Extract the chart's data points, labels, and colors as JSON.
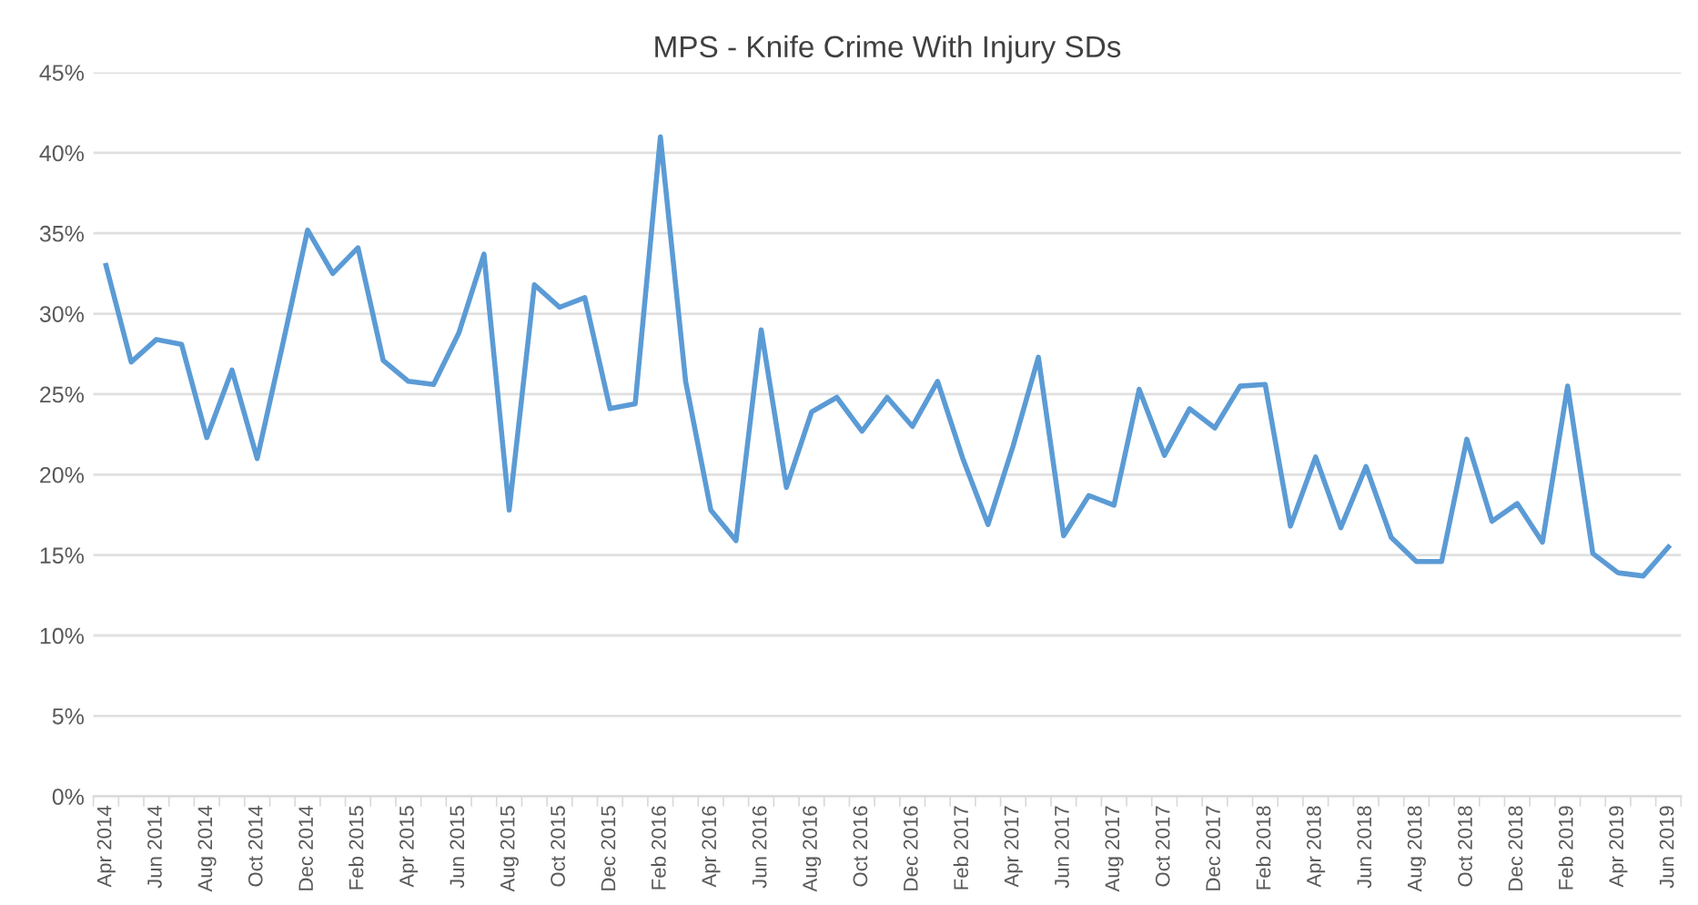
{
  "chart_data": {
    "type": "line",
    "title": "MPS - Knife Crime With Injury SDs",
    "categories": [
      "Apr 2014",
      null,
      "Jun 2014",
      null,
      "Aug 2014",
      null,
      "Oct 2014",
      null,
      "Dec 2014",
      null,
      "Feb 2015",
      null,
      "Apr 2015",
      null,
      "Jun 2015",
      null,
      "Aug 2015",
      null,
      "Oct 2015",
      null,
      "Dec 2015",
      null,
      "Feb 2016",
      null,
      "Apr 2016",
      null,
      "Jun 2016",
      null,
      "Aug 2016",
      null,
      "Oct 2016",
      null,
      "Dec 2016",
      null,
      "Feb 2017",
      null,
      "Apr 2017",
      null,
      "Jun 2017",
      null,
      "Aug 2017",
      null,
      "Oct 2017",
      null,
      "Dec 2017",
      null,
      "Feb 2018",
      null,
      "Apr 2018",
      null,
      "Jun 2018",
      null,
      "Aug 2018",
      null,
      "Oct 2018",
      null,
      "Dec 2018",
      null,
      "Feb 2019",
      null,
      "Apr 2019",
      null,
      "Jun 2019"
    ],
    "series": [
      {
        "color": "#5b9bd5",
        "values": [
          33.0,
          27.0,
          28.4,
          28.1,
          22.3,
          26.5,
          21.0,
          28.0,
          35.2,
          32.5,
          34.1,
          27.1,
          25.8,
          25.6,
          28.8,
          33.7,
          17.8,
          31.8,
          30.4,
          31.0,
          24.1,
          24.4,
          41.0,
          25.8,
          17.8,
          15.9,
          29.0,
          19.2,
          23.9,
          24.8,
          22.7,
          24.8,
          23.0,
          25.8,
          21.0,
          16.9,
          21.8,
          27.3,
          16.2,
          18.7,
          18.1,
          25.3,
          21.2,
          24.1,
          22.9,
          25.5,
          25.6,
          16.8,
          21.1,
          16.7,
          20.5,
          16.1,
          14.6,
          14.6,
          22.2,
          17.1,
          18.2,
          15.8,
          25.5,
          15.1,
          13.9,
          13.7,
          15.5
        ]
      }
    ],
    "ylim": [
      0,
      45
    ],
    "yticks": [
      {
        "value": 0,
        "label": "0%"
      },
      {
        "value": 5,
        "label": "5%"
      },
      {
        "value": 10,
        "label": "10%"
      },
      {
        "value": 15,
        "label": "15%"
      },
      {
        "value": 20,
        "label": "20%"
      },
      {
        "value": 25,
        "label": "25%"
      },
      {
        "value": 30,
        "label": "30%"
      },
      {
        "value": 35,
        "label": "35%"
      },
      {
        "value": 40,
        "label": "40%"
      },
      {
        "value": 45,
        "label": "45%"
      }
    ],
    "grid": "y",
    "marker": "none",
    "line_style": "solid",
    "legend": false
  }
}
